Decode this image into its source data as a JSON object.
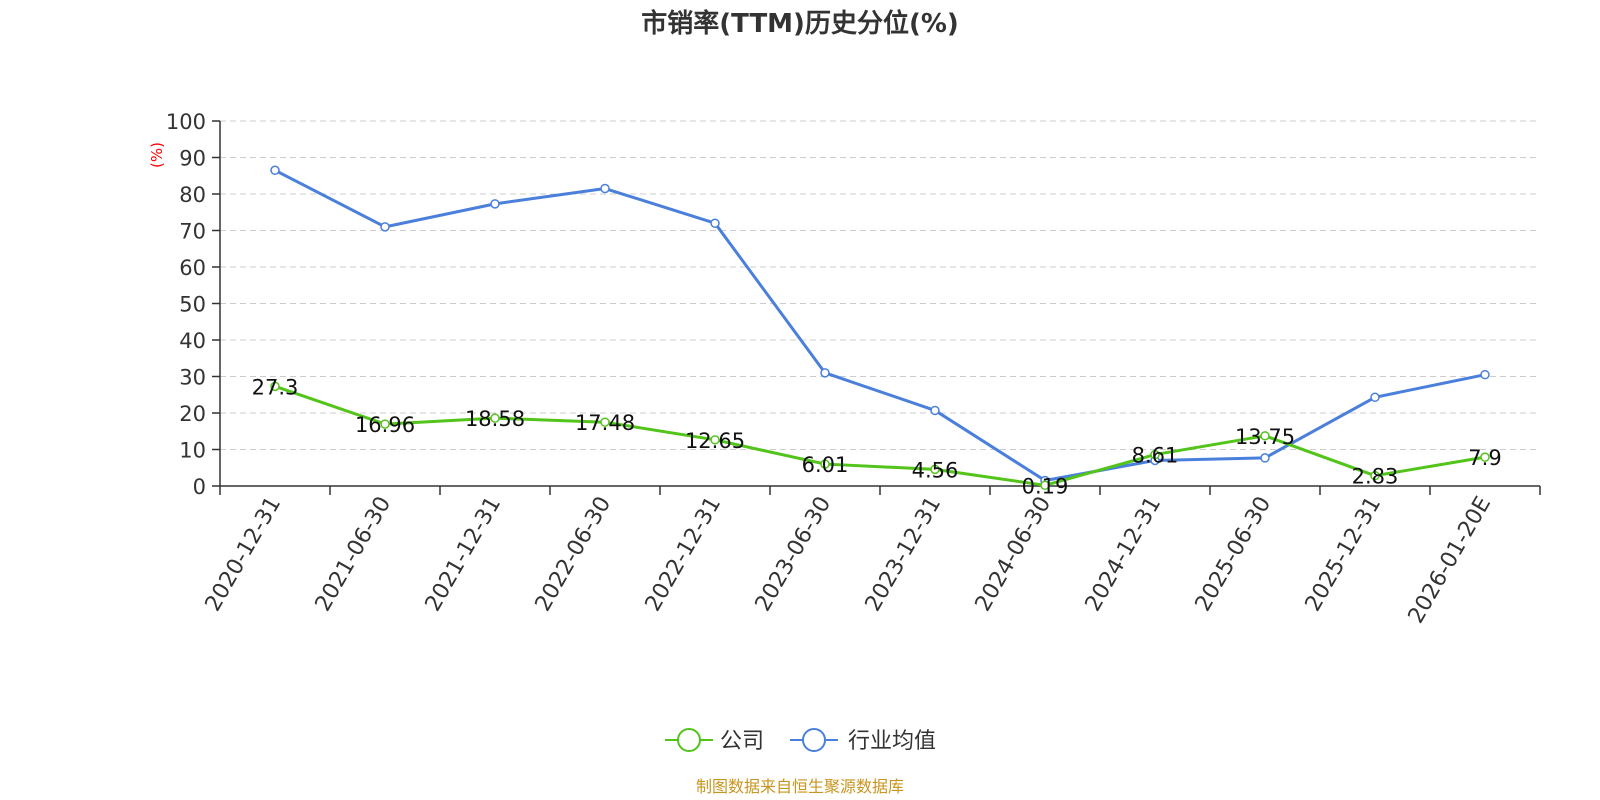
{
  "chart_data": {
    "type": "line",
    "title": "市销率(TTM)历史分位(%)",
    "ylabel": "(%)",
    "xlabel": "",
    "categories": [
      "2020-12-31",
      "2021-06-30",
      "2021-12-31",
      "2022-06-30",
      "2022-12-31",
      "2023-06-30",
      "2023-12-31",
      "2024-06-30",
      "2024-12-31",
      "2025-06-30",
      "2025-12-31",
      "2026-01-20E"
    ],
    "ylim": [
      0,
      100
    ],
    "yticks": [
      0,
      10,
      20,
      30,
      40,
      50,
      60,
      70,
      80,
      90,
      100
    ],
    "grid": true,
    "legend_position": "bottom-center",
    "series": [
      {
        "name": "公司",
        "color": "#52c41a",
        "labeled": true,
        "values": [
          27.3,
          16.96,
          18.58,
          17.48,
          12.65,
          6.01,
          4.56,
          0.19,
          8.61,
          13.75,
          2.83,
          7.9
        ]
      },
      {
        "name": "行业均值",
        "color": "#4a7fdb",
        "labeled": false,
        "values": [
          86.5,
          71.0,
          77.3,
          81.5,
          72.0,
          31.0,
          20.7,
          1.5,
          7.0,
          7.7,
          24.3,
          30.5
        ]
      }
    ]
  },
  "footer": {
    "source": "制图数据来自恒生聚源数据库",
    "color": "#c8961e"
  }
}
